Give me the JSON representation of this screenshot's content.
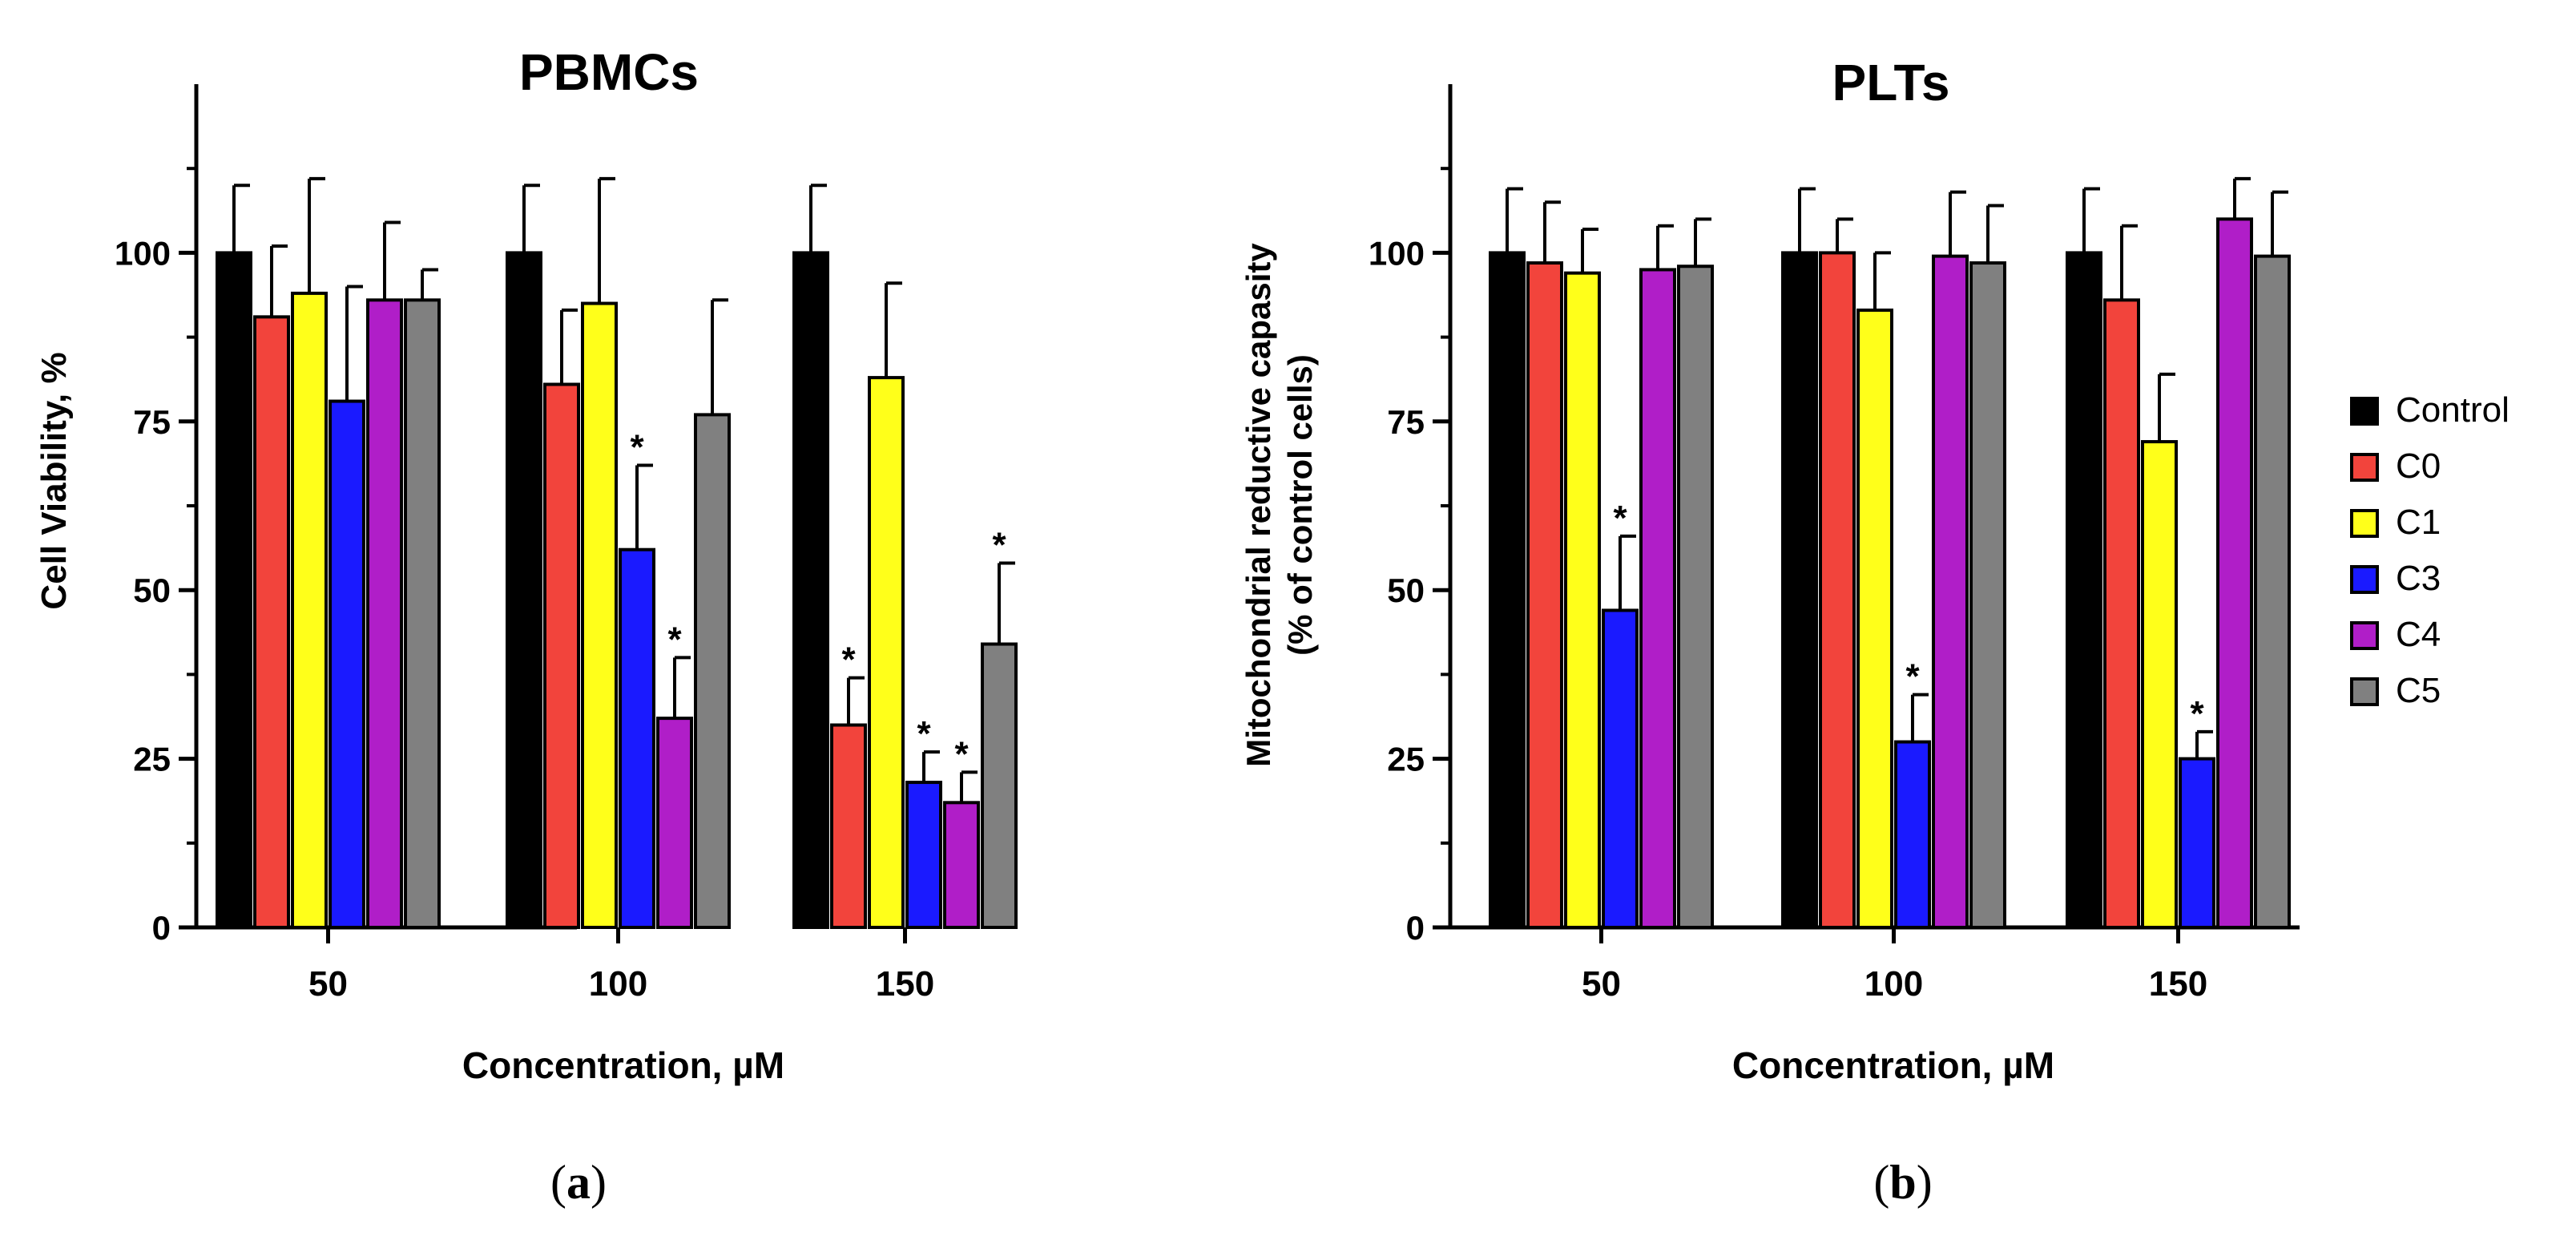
{
  "legend": {
    "entries": [
      {
        "name": "Control",
        "color": "#000000"
      },
      {
        "name": "C0",
        "color": "#f2443c"
      },
      {
        "name": "C1",
        "color": "#ffff1a"
      },
      {
        "name": "C3",
        "color": "#1a1aff"
      },
      {
        "name": "C4",
        "color": "#b01ec8"
      },
      {
        "name": "C5",
        "color": "#808080"
      }
    ]
  },
  "panels": {
    "a": {
      "label_open": "(",
      "label_letter": "a",
      "label_close": ")"
    },
    "b": {
      "label_open": "(",
      "label_letter": "b",
      "label_close": ")"
    }
  },
  "chart_data": [
    {
      "type": "bar",
      "title": "PBMCs",
      "xlabel": "Concentration, µM",
      "ylabel": "Cell Viability, %",
      "ylim": [
        0,
        125
      ],
      "yticks": [
        "0",
        "25",
        "50",
        "75",
        "100"
      ],
      "categories": [
        "50",
        "100",
        "150"
      ],
      "series": [
        {
          "name": "Control",
          "values": [
            100,
            100,
            100
          ],
          "errors": [
            10,
            10,
            10
          ],
          "significant": [
            false,
            false,
            false
          ]
        },
        {
          "name": "C0",
          "values": [
            90.5,
            80.5,
            30
          ],
          "errors": [
            10.5,
            11,
            7
          ],
          "significant": [
            false,
            false,
            true
          ]
        },
        {
          "name": "C1",
          "values": [
            94,
            92.5,
            81.5
          ],
          "errors": [
            17,
            18.5,
            14
          ],
          "significant": [
            false,
            false,
            false
          ]
        },
        {
          "name": "C3",
          "values": [
            78,
            56,
            21.5
          ],
          "errors": [
            17,
            12.5,
            4.5
          ],
          "significant": [
            false,
            true,
            true
          ]
        },
        {
          "name": "C4",
          "values": [
            93,
            31,
            18.5
          ],
          "errors": [
            11.5,
            9,
            4.5
          ],
          "significant": [
            false,
            true,
            true
          ]
        },
        {
          "name": "C5",
          "values": [
            93,
            76,
            42
          ],
          "errors": [
            4.5,
            17,
            12
          ],
          "significant": [
            false,
            false,
            true
          ]
        }
      ],
      "significance_marker": "*"
    },
    {
      "type": "bar",
      "title": "PLTs",
      "xlabel": "Concentration, µM",
      "ylabel": "Mitochondrial reductive capasity",
      "ylabel2": "(% of control cells)",
      "ylim": [
        0,
        125
      ],
      "yticks": [
        "0",
        "25",
        "50",
        "75",
        "100"
      ],
      "categories": [
        "50",
        "100",
        "150"
      ],
      "series": [
        {
          "name": "Control",
          "values": [
            100,
            100,
            100
          ],
          "errors": [
            9.5,
            9.5,
            9.5
          ],
          "significant": [
            false,
            false,
            false
          ]
        },
        {
          "name": "C0",
          "values": [
            98.5,
            100,
            93
          ],
          "errors": [
            9,
            5,
            11
          ],
          "significant": [
            false,
            false,
            false
          ]
        },
        {
          "name": "C1",
          "values": [
            97,
            91.5,
            72
          ],
          "errors": [
            6.5,
            8.5,
            10
          ],
          "significant": [
            false,
            false,
            false
          ]
        },
        {
          "name": "C3",
          "values": [
            47,
            27.5,
            25
          ],
          "errors": [
            11,
            7,
            4
          ],
          "significant": [
            true,
            true,
            true
          ]
        },
        {
          "name": "C4",
          "values": [
            97.5,
            99.5,
            105
          ],
          "errors": [
            6.5,
            9.5,
            6
          ],
          "significant": [
            false,
            false,
            false
          ]
        },
        {
          "name": "C5",
          "values": [
            98,
            98.5,
            99.5
          ],
          "errors": [
            7,
            8.5,
            9.5
          ],
          "significant": [
            false,
            false,
            false
          ]
        }
      ],
      "significance_marker": "*"
    }
  ]
}
